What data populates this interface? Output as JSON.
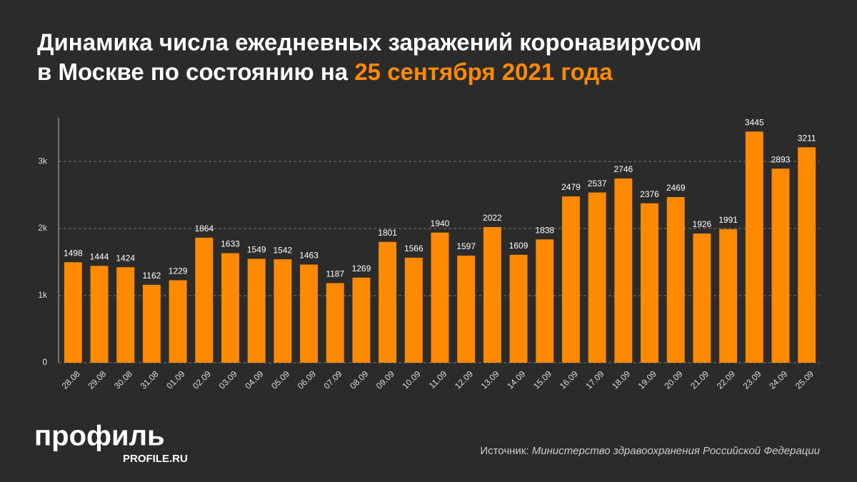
{
  "chart_data": {
    "type": "bar",
    "title_line1": "Динамика числа ежедневных заражений коронавирусом",
    "title_line2": "в Москве по состоянию на",
    "title_date": "25 сентября 2021 года",
    "categories": [
      "28.08",
      "29.08",
      "30.08",
      "31.08",
      "01.09",
      "02.09",
      "03.09",
      "04.09",
      "05.09",
      "06.09",
      "07.09",
      "08.09",
      "09.09",
      "10.09",
      "11.09",
      "12.09",
      "13.09",
      "14.09",
      "15.09",
      "16.09",
      "17.09",
      "18.09",
      "19.09",
      "20.09",
      "21.09",
      "22.09",
      "23.09",
      "24.09",
      "25.09"
    ],
    "values": [
      1498,
      1444,
      1424,
      1162,
      1229,
      1864,
      1633,
      1549,
      1542,
      1463,
      1187,
      1269,
      1801,
      1566,
      1940,
      1597,
      2022,
      1609,
      1838,
      2479,
      2537,
      2746,
      2376,
      2469,
      1926,
      1991,
      3445,
      2893,
      3211
    ],
    "color": "#ff8a00",
    "ylim": [
      0,
      3650
    ],
    "yticks": [
      0,
      {
        "value": 1000,
        "label": "1k"
      },
      {
        "value": 2000,
        "label": "2k"
      },
      {
        "value": 3000,
        "label": "3k"
      }
    ],
    "grid": true,
    "source_label": "Источник:",
    "source": "Министерство здравоохранения Российской Федерации",
    "logo": "профиль",
    "logo_url": "PROFILE.RU"
  }
}
